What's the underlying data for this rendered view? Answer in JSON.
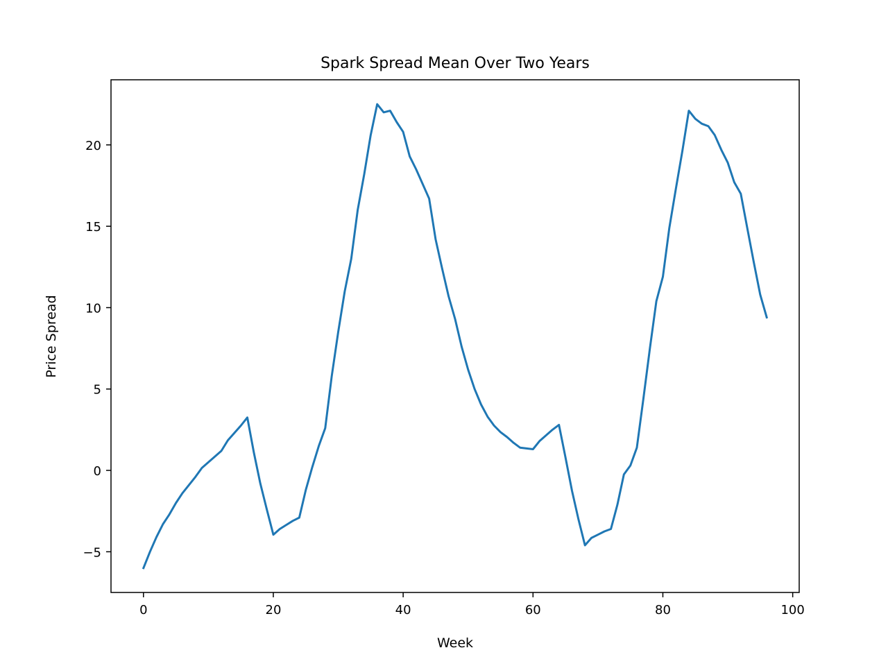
{
  "chart_data": {
    "type": "line",
    "title": "Spark Spread Mean Over Two Years",
    "xlabel": "Week",
    "ylabel": "Price Spread",
    "xlim": [
      -5,
      101
    ],
    "ylim": [
      -7.5,
      24
    ],
    "xticks": [
      0,
      20,
      40,
      60,
      80,
      100
    ],
    "yticks": [
      -5,
      0,
      5,
      10,
      15,
      20
    ],
    "ytick_labels": [
      "−5",
      "0",
      "5",
      "10",
      "15",
      "20"
    ],
    "grid": false,
    "legend": "none",
    "series": [
      {
        "color": "#1f77b4",
        "x": [
          0,
          1,
          2,
          3,
          4,
          5,
          6,
          7,
          8,
          9,
          10,
          11,
          12,
          13,
          14,
          15,
          16,
          17,
          18,
          19,
          20,
          21,
          22,
          23,
          24,
          25,
          26,
          27,
          28,
          29,
          30,
          31,
          32,
          33,
          34,
          35,
          36,
          37,
          38,
          39,
          40,
          41,
          42,
          43,
          44,
          45,
          46,
          47,
          48,
          49,
          50,
          51,
          52,
          53,
          54,
          55,
          56,
          57,
          58,
          59,
          60,
          61,
          62,
          63,
          64,
          65,
          66,
          67,
          68,
          69,
          70,
          71,
          72,
          73,
          74,
          75,
          76,
          77,
          78,
          79,
          80,
          81,
          82,
          83,
          84,
          85,
          86,
          87,
          88,
          89,
          90,
          91,
          92,
          93,
          94,
          95,
          96
        ],
        "y": [
          -6.0,
          -5.0,
          -4.1,
          -3.3,
          -2.7,
          -2.0,
          -1.4,
          -0.9,
          -0.4,
          0.15,
          0.5,
          0.85,
          1.2,
          1.85,
          2.3,
          2.75,
          3.25,
          1.1,
          -0.8,
          -2.4,
          -3.95,
          -3.6,
          -3.35,
          -3.1,
          -2.9,
          -1.2,
          0.2,
          1.5,
          2.6,
          5.8,
          8.5,
          11.0,
          13.0,
          16.0,
          18.2,
          20.6,
          22.5,
          22.0,
          22.1,
          21.4,
          20.8,
          19.3,
          18.5,
          17.6,
          16.7,
          14.2,
          12.4,
          10.7,
          9.3,
          7.6,
          6.2,
          5.0,
          4.05,
          3.3,
          2.75,
          2.35,
          2.05,
          1.7,
          1.4,
          1.35,
          1.3,
          1.8,
          2.15,
          2.5,
          2.8,
          0.8,
          -1.25,
          -3.0,
          -4.6,
          -4.15,
          -3.95,
          -3.75,
          -3.6,
          -2.1,
          -0.25,
          0.3,
          1.4,
          4.4,
          7.5,
          10.4,
          11.9,
          14.9,
          17.3,
          19.6,
          22.1,
          21.6,
          21.3,
          21.15,
          20.6,
          19.7,
          18.9,
          17.7,
          17.0,
          14.9,
          12.8,
          10.8,
          9.4
        ]
      }
    ]
  }
}
